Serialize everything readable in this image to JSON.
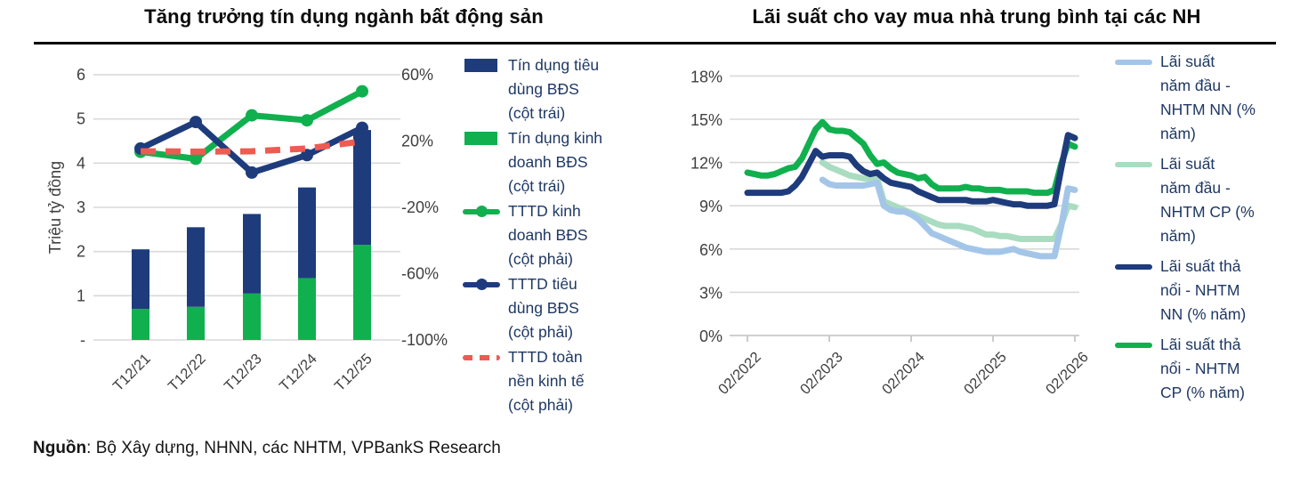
{
  "page": {
    "source_label": "Nguồn",
    "source_text": ": Bộ Xây dựng, NHNN, các NHTM, VPBankS Research"
  },
  "colors": {
    "navy": "#1e3c7c",
    "green": "#10b04e",
    "light_blue": "#a3c6e8",
    "light_green": "#a9dcc0",
    "red": "#ee5b52",
    "gridline": "#d9d9d9",
    "axis_line": "#bfbfbf",
    "tick_text": "#3f3f3f",
    "legend_text": "#1f3864",
    "title_text": "#0b0b0b"
  },
  "left_chart": {
    "title": "Tăng trưởng tín dụng ngành bất động sản",
    "y_axis": {
      "label": "Triệu tỷ đồng",
      "tick_labels": [
        "6",
        "5",
        "4",
        "3",
        "2",
        "1",
        "-"
      ],
      "tick_values": [
        6,
        5,
        4,
        3,
        2,
        1,
        0
      ]
    },
    "right_axis": {
      "tick_labels": [
        "60%",
        "20%",
        "-20%",
        "-60%",
        "-100%"
      ],
      "tick_values": [
        60,
        20,
        -20,
        -60,
        -100
      ]
    },
    "legend": [
      {
        "label": "Tín dụng tiêu\ndùng BĐS\n(cột trái)",
        "type": "rect",
        "color": "navy"
      },
      {
        "label": "Tín dụng kinh\ndoanh BĐS\n(cột trái)",
        "type": "rect",
        "color": "green"
      },
      {
        "label": "TTTD kinh\ndoanh BĐS\n(cột phải)",
        "type": "line-dot",
        "color": "green"
      },
      {
        "label": "TTTD tiêu\ndùng BĐS\n(cột phải)",
        "type": "line-dot",
        "color": "navy"
      },
      {
        "label": "TTTD toàn\nnền kinh tế\n(cột phải)",
        "type": "dash",
        "color": "red"
      }
    ],
    "chart_data": {
      "type": "combo-stacked-bar-line",
      "categories": [
        "T12/21",
        "T12/22",
        "T12/23",
        "T12/24",
        "T12/25"
      ],
      "left_axis_title": "Triệu tỷ đồng",
      "left_ylim": [
        0,
        6
      ],
      "right_ylim": [
        -100,
        60
      ],
      "bar_series": [
        {
          "name": "Tín dụng kinh doanh BĐS (cột trái)",
          "color": "green",
          "stack": "bottom",
          "values": [
            0.7,
            0.75,
            1.05,
            1.4,
            2.15
          ]
        },
        {
          "name": "Tín dụng tiêu dùng BĐS (cột trái)",
          "color": "navy",
          "stack": "top",
          "values": [
            1.35,
            1.8,
            1.8,
            2.05,
            2.6
          ]
        }
      ],
      "line_series": [
        {
          "name": "TTTD kinh doanh BĐS (cột phải)",
          "color": "green",
          "style": "solid-marker",
          "values": [
            13.5,
            9.3,
            35.5,
            32.5,
            50.0
          ]
        },
        {
          "name": "TTTD tiêu dùng BĐS (cột phải)",
          "color": "navy",
          "style": "solid-marker",
          "values": [
            15.5,
            31.5,
            1.0,
            11.5,
            28.0
          ]
        },
        {
          "name": "TTTD toàn nền kinh tế (cột phải)",
          "color": "red",
          "style": "dashed",
          "values": [
            13.8,
            13.6,
            13.8,
            15.5,
            19.8
          ]
        }
      ]
    }
  },
  "right_chart": {
    "title": "Lãi suất cho vay mua nhà trung bình tại các NH",
    "y_axis": {
      "tick_labels": [
        "18%",
        "15%",
        "12%",
        "9%",
        "6%",
        "3%",
        "0%"
      ],
      "tick_values": [
        18,
        15,
        12,
        9,
        6,
        3,
        0
      ]
    },
    "x_axis": {
      "tick_labels": [
        "02/2022",
        "02/2023",
        "02/2024",
        "02/2025",
        "02/2026"
      ],
      "tick_months": [
        0,
        12,
        24,
        36,
        48
      ]
    },
    "legend": [
      {
        "label": "Lãi suất\nnăm đầu -\nNHTM NN (%\nnăm)",
        "type": "line",
        "color": "light_blue"
      },
      {
        "label": "Lãi suất\nnăm đầu -\nNHTM CP (%\nnăm)",
        "type": "line",
        "color": "light_green"
      },
      {
        "label": "Lãi suất thả\nnổi - NHTM\nNN (% năm)",
        "type": "line",
        "color": "navy"
      },
      {
        "label": "Lãi suất thả\nnổi - NHTM\nCP (% năm)",
        "type": "line",
        "color": "green"
      }
    ],
    "chart_data": {
      "type": "line",
      "x_unit": "months since 02/2022",
      "ylim": [
        0,
        18
      ],
      "series": [
        {
          "name": "Lãi suất năm đầu - NHTM CP (% năm)",
          "color": "light_green",
          "start_month": 11,
          "values": [
            12.0,
            11.7,
            11.5,
            11.3,
            11.1,
            11.0,
            10.9,
            10.9,
            10.9,
            9.3,
            9.1,
            8.9,
            8.7,
            8.5,
            8.3,
            8.1,
            7.9,
            7.7,
            7.6,
            7.6,
            7.6,
            7.5,
            7.4,
            7.2,
            7.0,
            7.0,
            6.9,
            6.9,
            6.8,
            6.7,
            6.7,
            6.7,
            6.7,
            6.7,
            6.7,
            7.7,
            9.0,
            8.9
          ]
        },
        {
          "name": "Lãi suất năm đầu - NHTM NN (% năm)",
          "color": "light_blue",
          "start_month": 11,
          "values": [
            10.8,
            10.5,
            10.4,
            10.4,
            10.4,
            10.4,
            10.4,
            10.5,
            10.6,
            9.0,
            8.7,
            8.6,
            8.6,
            8.4,
            8.1,
            7.6,
            7.1,
            6.9,
            6.7,
            6.5,
            6.3,
            6.1,
            6.0,
            5.9,
            5.8,
            5.8,
            5.8,
            5.9,
            6.0,
            5.8,
            5.7,
            5.6,
            5.5,
            5.5,
            5.5,
            7.6,
            10.2,
            10.1
          ]
        },
        {
          "name": "Lãi suất thả nổi - NHTM CP (% năm)",
          "color": "green",
          "start_month": 0,
          "values": [
            11.3,
            11.2,
            11.1,
            11.1,
            11.2,
            11.4,
            11.6,
            11.7,
            12.3,
            13.3,
            14.3,
            14.8,
            14.3,
            14.2,
            14.2,
            14.1,
            13.7,
            13.3,
            12.5,
            11.9,
            12.0,
            11.6,
            11.3,
            11.2,
            11.1,
            10.9,
            11.0,
            10.5,
            10.2,
            10.2,
            10.2,
            10.2,
            10.3,
            10.2,
            10.2,
            10.1,
            10.1,
            10.1,
            10.0,
            10.0,
            10.0,
            10.0,
            9.9,
            9.9,
            9.9,
            10.1,
            11.9,
            13.3,
            13.1
          ]
        },
        {
          "name": "Lãi suất thả nổi - NHTM NN (% năm)",
          "color": "navy",
          "start_month": 0,
          "values": [
            9.9,
            9.9,
            9.9,
            9.9,
            9.9,
            9.9,
            10.0,
            10.4,
            11.0,
            11.9,
            12.8,
            12.4,
            12.5,
            12.5,
            12.5,
            12.4,
            11.8,
            11.4,
            11.2,
            11.3,
            10.9,
            10.6,
            10.5,
            10.4,
            10.3,
            10.0,
            9.8,
            9.6,
            9.4,
            9.4,
            9.4,
            9.4,
            9.4,
            9.3,
            9.3,
            9.3,
            9.4,
            9.3,
            9.2,
            9.1,
            9.1,
            9.0,
            9.0,
            9.0,
            9.0,
            9.1,
            11.6,
            13.9,
            13.7
          ]
        }
      ]
    }
  }
}
